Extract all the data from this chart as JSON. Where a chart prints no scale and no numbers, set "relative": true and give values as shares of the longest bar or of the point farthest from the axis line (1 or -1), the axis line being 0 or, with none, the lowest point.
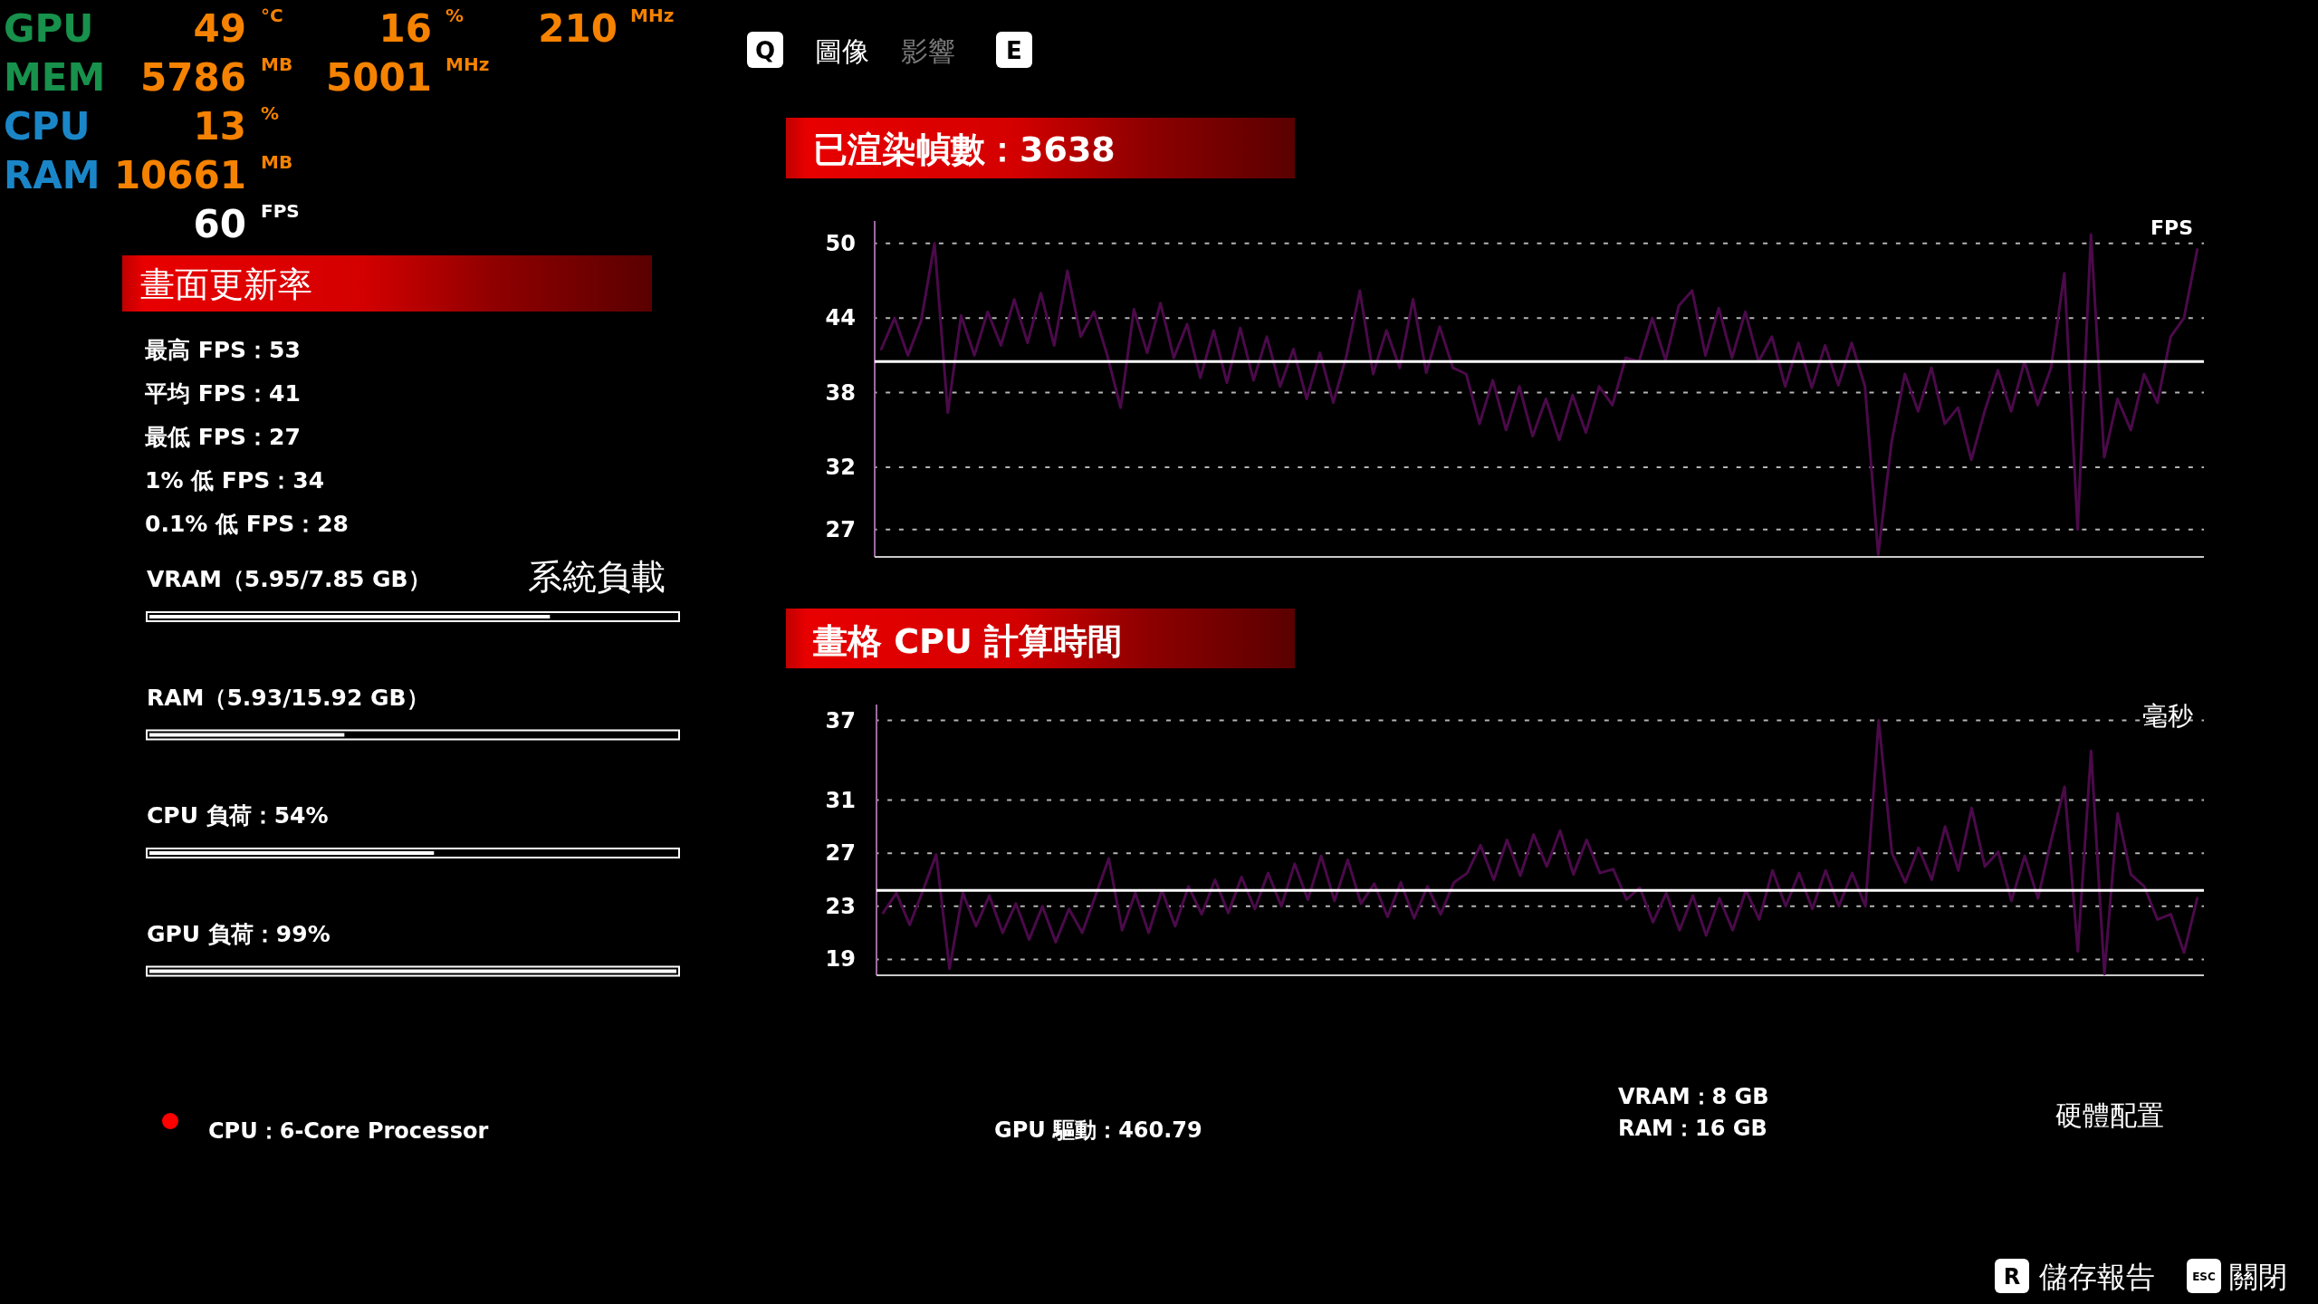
{
  "chart_data": [
    {
      "type": "other",
      "annotations": [
        "GPU",
        "49",
        "°C",
        "16",
        "%",
        "210",
        "MHz",
        "MEM",
        "5786",
        "MB",
        "5001",
        "MHz",
        "CPU",
        "13",
        "%",
        "RAM",
        "10661",
        "MB",
        "60",
        "FPS"
      ]
    },
    {
      "type": "other",
      "annotations": [
        "Q",
        "圖像",
        "影響",
        "E"
      ]
    },
    {
      "type": "other",
      "title": "畫面更新率",
      "annotations": [
        "最高 FPS：53",
        "平均 FPS：41",
        "最低 FPS：27",
        "1% 低 FPS：34",
        "0.1% 低 FPS：28"
      ]
    },
    {
      "type": "line",
      "title": "已渲染幀數：3638",
      "ylabel": "FPS",
      "color": "#4b0a4a",
      "ylim": [
        24.8,
        51.8
      ],
      "yticks": [
        27,
        32,
        38,
        44,
        50
      ],
      "grid": "y",
      "tick_labels": "y",
      "ref_lines": [
        {
          "axis": "y",
          "value": 40.5,
          "color": "#ffffff"
        }
      ],
      "categories": [
        null,
        null,
        null,
        null,
        null,
        null,
        null,
        null,
        null,
        null,
        null,
        null,
        null,
        null,
        null,
        null,
        null,
        null,
        null,
        null,
        null,
        null,
        null,
        null,
        null,
        null,
        null,
        null,
        null,
        null,
        null,
        null,
        null,
        null,
        null,
        null,
        null,
        null,
        null,
        null,
        null,
        null,
        null,
        null,
        null,
        null,
        null,
        null,
        null,
        null,
        null,
        null,
        null,
        null,
        null,
        null,
        null,
        null,
        null,
        null,
        null,
        null,
        null,
        null,
        null,
        null,
        null,
        null,
        null,
        null,
        null,
        null,
        null,
        null,
        null,
        null,
        null,
        null,
        null,
        null,
        null,
        null,
        null,
        null,
        null,
        null,
        null,
        null,
        null,
        null,
        null,
        null,
        null,
        null,
        null,
        null,
        null,
        null,
        null,
        null
      ],
      "values": [
        41.5,
        44.0,
        41.0,
        43.8,
        50.0,
        36.4,
        44.2,
        41.0,
        44.5,
        41.8,
        45.5,
        42.0,
        46.0,
        41.8,
        47.8,
        42.5,
        44.5,
        41.0,
        36.8,
        44.7,
        41.2,
        45.2,
        40.8,
        43.5,
        39.2,
        43.0,
        38.8,
        43.2,
        39.0,
        42.5,
        38.5,
        41.5,
        37.5,
        41.2,
        37.2,
        41.0,
        46.2,
        39.5,
        43.0,
        40.0,
        45.5,
        39.6,
        43.3,
        40.0,
        39.5,
        35.5,
        39.0,
        35.0,
        38.5,
        34.5,
        37.5,
        34.2,
        37.8,
        34.8,
        38.5,
        37.0,
        40.8,
        40.5,
        44.0,
        40.6,
        45.0,
        46.2,
        41.0,
        44.8,
        40.8,
        44.5,
        40.5,
        42.5,
        38.5,
        42.0,
        38.4,
        41.8,
        38.6,
        42.0,
        38.5,
        25.0,
        34.0,
        39.5,
        36.5,
        40.0,
        35.5,
        36.8,
        32.6,
        36.5,
        39.8,
        36.5,
        40.5,
        37.0,
        40.0,
        47.6,
        27.0,
        50.7,
        32.8,
        37.5,
        35.0,
        39.5,
        37.2,
        42.5,
        44.0,
        49.5
      ]
    },
    {
      "type": "line",
      "title": "畫格 CPU 計算時間",
      "ylabel": "毫秒",
      "color": "#4b0a4a",
      "ylim": [
        17.8,
        38.2
      ],
      "yticks": [
        19,
        23,
        27,
        31,
        37
      ],
      "grid": "y",
      "tick_labels": "y",
      "ref_lines": [
        {
          "axis": "y",
          "value": 24.2,
          "color": "#ffffff"
        }
      ],
      "categories": [
        null,
        null,
        null,
        null,
        null,
        null,
        null,
        null,
        null,
        null,
        null,
        null,
        null,
        null,
        null,
        null,
        null,
        null,
        null,
        null,
        null,
        null,
        null,
        null,
        null,
        null,
        null,
        null,
        null,
        null,
        null,
        null,
        null,
        null,
        null,
        null,
        null,
        null,
        null,
        null,
        null,
        null,
        null,
        null,
        null,
        null,
        null,
        null,
        null,
        null,
        null,
        null,
        null,
        null,
        null,
        null,
        null,
        null,
        null,
        null,
        null,
        null,
        null,
        null,
        null,
        null,
        null,
        null,
        null,
        null,
        null,
        null,
        null,
        null,
        null,
        null,
        null,
        null,
        null,
        null,
        null,
        null,
        null,
        null,
        null,
        null,
        null,
        null,
        null,
        null,
        null,
        null,
        null,
        null,
        null,
        null,
        null,
        null,
        null,
        null
      ],
      "values": [
        22.5,
        24.0,
        21.6,
        24.2,
        26.9,
        18.3,
        24.0,
        21.5,
        23.8,
        21.0,
        23.2,
        20.5,
        23.0,
        20.3,
        22.8,
        21.0,
        23.8,
        26.6,
        21.2,
        24.0,
        21.0,
        24.2,
        21.5,
        24.5,
        22.4,
        25.0,
        22.5,
        25.2,
        22.8,
        25.5,
        23.0,
        26.2,
        23.5,
        26.8,
        23.4,
        26.5,
        23.2,
        24.7,
        22.2,
        24.8,
        22.1,
        24.5,
        22.4,
        24.8,
        25.5,
        27.6,
        25.0,
        28.0,
        25.3,
        28.4,
        26.0,
        28.7,
        25.4,
        28.0,
        25.5,
        25.8,
        23.5,
        24.4,
        21.8,
        24.0,
        21.2,
        23.8,
        20.8,
        23.6,
        21.2,
        24.2,
        22.0,
        25.7,
        23.0,
        25.5,
        22.8,
        25.7,
        23.0,
        25.5,
        23.0,
        37.0,
        27.0,
        24.8,
        27.4,
        25.0,
        29.0,
        25.7,
        30.4,
        26.0,
        27.1,
        23.4,
        26.8,
        23.6,
        28.0,
        32.0,
        19.6,
        34.7,
        17.9,
        30.0,
        25.4,
        24.5,
        22.0,
        22.4,
        19.5,
        23.6
      ]
    },
    {
      "type": "bar",
      "orientation": "horizontal",
      "relative": true,
      "title": "系統負載",
      "color": "#ffffff",
      "categories": [
        "VRAM（5.95/7.85 GB）",
        "RAM（5.93/15.92 GB）",
        "CPU 負荷：54%",
        "GPU 負荷：99%"
      ],
      "values": [
        0.76,
        0.37,
        0.54,
        1
      ]
    },
    {
      "type": "other",
      "title": "硬體配置",
      "annotations": [
        "CPU：6-Core Processor",
        "GPU 驅動：460.79",
        "VRAM：8 GB",
        "RAM：16 GB"
      ]
    },
    {
      "type": "other",
      "annotations": [
        "R",
        "儲存報告",
        "ESC",
        "關閉"
      ]
    }
  ]
}
